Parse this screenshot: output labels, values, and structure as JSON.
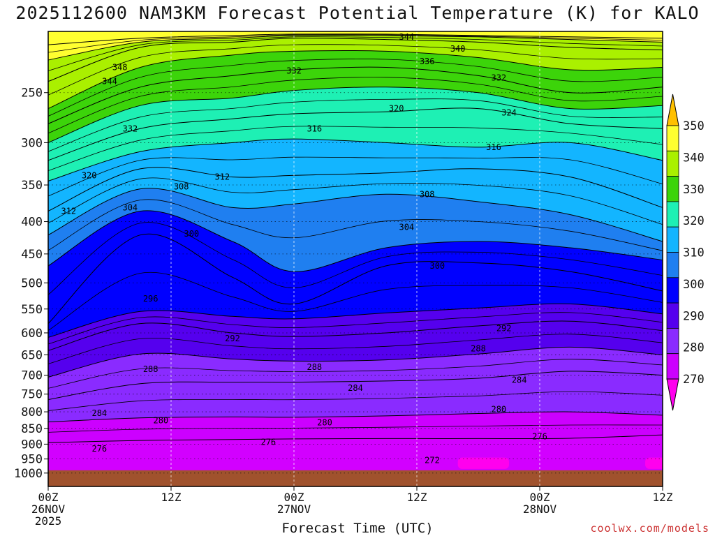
{
  "chart_data": {
    "type": "heatmap",
    "title": "2025112600 NAM3KM Forecast Potential Temperature (K) for KALO",
    "xlabel": "Forecast Time (UTC)",
    "ylabel": "Pressure (hPa)",
    "credit": "coolwx.com/models",
    "x_ticks": [
      {
        "hour": 0,
        "lines": [
          "00Z",
          "26NOV",
          "2025"
        ]
      },
      {
        "hour": 12,
        "lines": [
          "12Z"
        ]
      },
      {
        "hour": 24,
        "lines": [
          "00Z",
          "27NOV"
        ]
      },
      {
        "hour": 36,
        "lines": [
          "12Z"
        ]
      },
      {
        "hour": 48,
        "lines": [
          "00Z",
          "28NOV"
        ]
      },
      {
        "hour": 60,
        "lines": [
          "12Z"
        ]
      }
    ],
    "xlim": [
      0,
      60
    ],
    "y_ticks": [
      "250",
      "300",
      "350",
      "400",
      "450",
      "500",
      "550",
      "600",
      "650",
      "700",
      "750",
      "800",
      "850",
      "900",
      "950",
      "1000"
    ],
    "ylim": [
      1050,
      200
    ],
    "colorbar": {
      "levels": [
        "270",
        "280",
        "290",
        "300",
        "310",
        "320",
        "330",
        "340",
        "350"
      ],
      "colors": [
        "#ff00ee",
        "#cc00ff",
        "#8a2bff",
        "#5500ee",
        "#0000ff",
        "#1f7ff0",
        "#13b5ff",
        "#1ef0b4",
        "#3cd40a",
        "#aaf000",
        "#ffff30",
        "#ffc000"
      ]
    },
    "series": [
      {
        "theta": 276,
        "label": "276",
        "pressure": [
          895,
          888,
          885,
          883,
          882,
          882,
          881,
          870
        ]
      },
      {
        "theta": 280,
        "label": "280",
        "pressure": [
          830,
          818,
          815,
          816,
          812,
          805,
          800,
          810
        ]
      },
      {
        "theta": 284,
        "label": "284",
        "pressure": [
          765,
          722,
          718,
          718,
          715,
          708,
          690,
          700
        ]
      },
      {
        "theta": 288,
        "label": "288",
        "pressure": [
          705,
          648,
          660,
          665,
          662,
          648,
          632,
          650
        ]
      },
      {
        "theta": 292,
        "label": "292",
        "pressure": [
          640,
          580,
          600,
          608,
          600,
          585,
          575,
          595
        ]
      },
      {
        "theta": 296,
        "label": "296",
        "pressure": [
          610,
          555,
          565,
          570,
          558,
          548,
          540,
          560
        ]
      },
      {
        "theta": 300,
        "label": "300",
        "pressure": [
          580,
          420,
          490,
          540,
          470,
          465,
          480,
          515
        ]
      },
      {
        "theta": 304,
        "label": "304",
        "pressure": [
          470,
          385,
          430,
          480,
          440,
          430,
          440,
          460
        ]
      },
      {
        "theta": 308,
        "label": "308",
        "pressure": [
          420,
          355,
          380,
          375,
          362,
          372,
          390,
          430
        ]
      },
      {
        "theta": 312,
        "label": "312",
        "pressure": [
          385,
          330,
          340,
          338,
          335,
          330,
          340,
          380
        ]
      },
      {
        "theta": 316,
        "label": "316",
        "pressure": [
          345,
          310,
          300,
          296,
          300,
          305,
          300,
          320
        ]
      },
      {
        "theta": 320,
        "label": "320",
        "pressure": [
          320,
          285,
          275,
          270,
          268,
          265,
          280,
          285
        ]
      },
      {
        "theta": 324,
        "label": "324",
        "pressure": [
          300,
          262,
          255,
          248,
          245,
          250,
          265,
          262
        ]
      },
      {
        "theta": 328,
        "label": "328",
        "pressure": [
          280,
          245,
          235,
          230,
          228,
          235,
          250,
          245
        ]
      },
      {
        "theta": 332,
        "label": "332",
        "pressure": [
          265,
          228,
          218,
          215,
          215,
          220,
          230,
          228
        ]
      },
      {
        "theta": 336,
        "label": "336",
        "pressure": [
          240,
          212,
          208,
          205,
          206,
          208,
          212,
          214
        ]
      },
      {
        "theta": 340,
        "label": "340",
        "pressure": [
          222,
          208,
          205,
          203,
          203,
          204,
          206,
          208
        ]
      },
      {
        "theta": 344,
        "label": "344",
        "pressure": [
          210,
          205,
          203,
          202,
          202,
          203,
          204,
          205
        ]
      }
    ],
    "series_hours": [
      0,
      9,
      18,
      24,
      33,
      42,
      51,
      60
    ],
    "inline_labels": [
      {
        "text": "276",
        "hour": 5,
        "p": 915
      },
      {
        "text": "276",
        "hour": 21.5,
        "p": 893
      },
      {
        "text": "276",
        "hour": 48,
        "p": 875
      },
      {
        "text": "272",
        "hour": 37.5,
        "p": 955
      },
      {
        "text": "280",
        "hour": 11,
        "p": 826
      },
      {
        "text": "280",
        "hour": 27,
        "p": 832
      },
      {
        "text": "280",
        "hour": 44,
        "p": 793
      },
      {
        "text": "284",
        "hour": 5,
        "p": 804
      },
      {
        "text": "284",
        "hour": 30,
        "p": 734
      },
      {
        "text": "284",
        "hour": 46,
        "p": 712
      },
      {
        "text": "288",
        "hour": 10,
        "p": 685
      },
      {
        "text": "288",
        "hour": 26,
        "p": 680
      },
      {
        "text": "288",
        "hour": 42,
        "p": 635
      },
      {
        "text": "292",
        "hour": 18,
        "p": 612
      },
      {
        "text": "292",
        "hour": 44.5,
        "p": 590
      },
      {
        "text": "296",
        "hour": 10,
        "p": 530
      },
      {
        "text": "300",
        "hour": 14,
        "p": 418
      },
      {
        "text": "300",
        "hour": 38,
        "p": 470
      },
      {
        "text": "304",
        "hour": 8,
        "p": 380
      },
      {
        "text": "304",
        "hour": 35,
        "p": 408
      },
      {
        "text": "308",
        "hour": 13,
        "p": 352
      },
      {
        "text": "308",
        "hour": 37,
        "p": 362
      },
      {
        "text": "312",
        "hour": 2,
        "p": 385
      },
      {
        "text": "312",
        "hour": 17,
        "p": 340
      },
      {
        "text": "316",
        "hour": 26,
        "p": 285
      },
      {
        "text": "316",
        "hour": 43.5,
        "p": 305
      },
      {
        "text": "320",
        "hour": 4,
        "p": 338
      },
      {
        "text": "320",
        "hour": 34,
        "p": 265
      },
      {
        "text": "324",
        "hour": 45,
        "p": 269
      },
      {
        "text": "332",
        "hour": 8,
        "p": 285
      },
      {
        "text": "332",
        "hour": 24,
        "p": 231
      },
      {
        "text": "332",
        "hour": 44,
        "p": 237
      },
      {
        "text": "336",
        "hour": 37,
        "p": 223
      },
      {
        "text": "340",
        "hour": 40,
        "p": 213
      },
      {
        "text": "344",
        "hour": 35,
        "p": 204
      },
      {
        "text": "344",
        "hour": 6,
        "p": 240
      },
      {
        "text": "348",
        "hour": 7,
        "p": 228
      }
    ]
  }
}
